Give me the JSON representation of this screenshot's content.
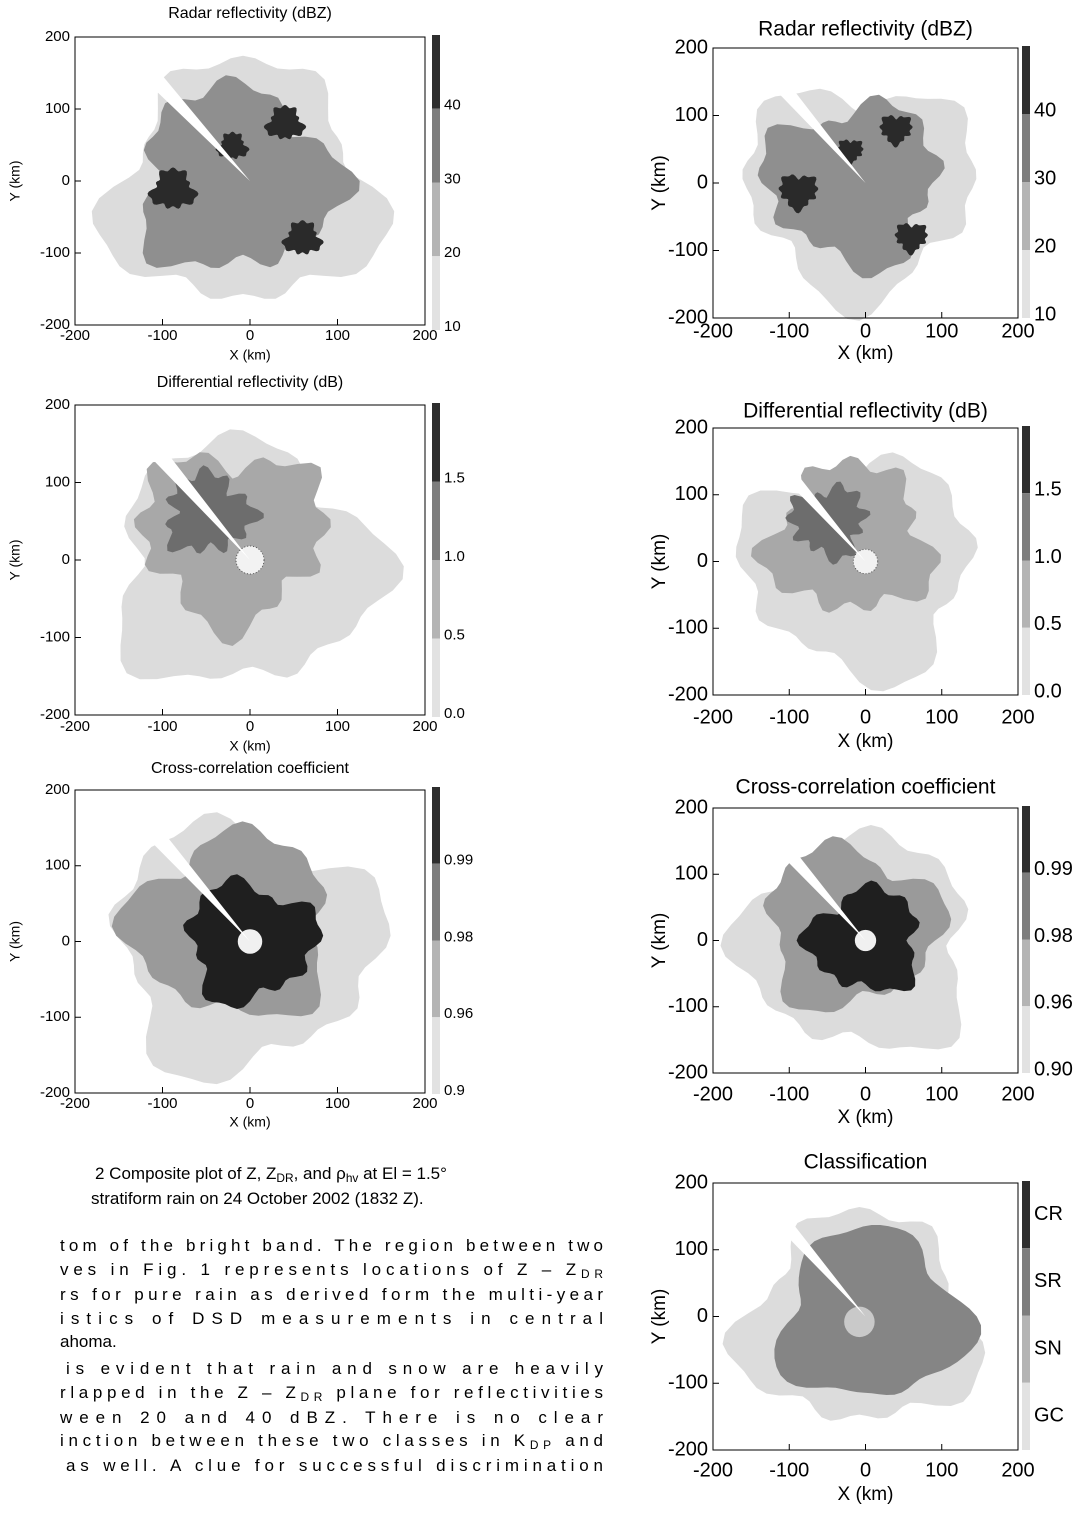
{
  "panels": [
    {
      "title": "Radar reflectivity (dBZ)",
      "x_label": "X (km)",
      "y_label": "Y (km)",
      "x_ticks": [
        "-200",
        "-100",
        "0",
        "100",
        "200"
      ],
      "y_ticks": [
        "200",
        "100",
        "0",
        "-100",
        "-200"
      ],
      "colorbar_labels": [
        "40",
        "30",
        "20",
        "10"
      ]
    },
    {
      "title": "Differential reflectivity (dB)",
      "x_label": "X (km)",
      "y_label": "Y (km)",
      "x_ticks": [
        "-200",
        "-100",
        "0",
        "100",
        "200"
      ],
      "y_ticks": [
        "200",
        "100",
        "0",
        "-100",
        "-200"
      ],
      "colorbar_labels": [
        "1.5",
        "1.0",
        "0.5",
        "0.0"
      ]
    },
    {
      "title": "Cross-correlation coefficient",
      "x_label": "X (km)",
      "y_label": "Y (km)",
      "x_ticks": [
        "-200",
        "-100",
        "0",
        "100",
        "200"
      ],
      "y_ticks": [
        "200",
        "100",
        "0",
        "-100",
        "-200"
      ],
      "colorbar_labels": [
        "0.99",
        "0.98",
        "0.96",
        "0.9"
      ]
    },
    {
      "title": "Radar reflectivity (dBZ)",
      "x_label": "X (km)",
      "y_label": "Y (km)",
      "x_ticks": [
        "-200",
        "-100",
        "0",
        "100",
        "200"
      ],
      "y_ticks": [
        "200",
        "100",
        "0",
        "-100",
        "-200"
      ],
      "colorbar_labels": [
        "40",
        "30",
        "20",
        "10"
      ]
    },
    {
      "title": "Differential reflectivity (dB)",
      "x_label": "X (km)",
      "y_label": "Y (km)",
      "x_ticks": [
        "-200",
        "-100",
        "0",
        "100",
        "200"
      ],
      "y_ticks": [
        "200",
        "100",
        "0",
        "-100",
        "-200"
      ],
      "colorbar_labels": [
        "1.5",
        "1.0",
        "0.5",
        "0.0"
      ]
    },
    {
      "title": "Cross-correlation coefficient",
      "x_label": "X (km)",
      "y_label": "Y (km)",
      "x_ticks": [
        "-200",
        "-100",
        "0",
        "100",
        "200"
      ],
      "y_ticks": [
        "200",
        "100",
        "0",
        "-100",
        "-200"
      ],
      "colorbar_labels": [
        "0.99",
        "0.98",
        "0.96",
        "0.90"
      ]
    },
    {
      "title": "Classification",
      "x_label": "X (km)",
      "y_label": "Y (km)",
      "x_ticks": [
        "-200",
        "-100",
        "0",
        "100",
        "200"
      ],
      "y_ticks": [
        "200",
        "100",
        "0",
        "-100",
        "-200"
      ],
      "colorbar_labels": [
        "CR",
        "SR",
        "SN",
        "GC"
      ]
    }
  ],
  "caption": [
    [
      "2 Composite plot of Z, Z",
      "DR",
      ", and ρ",
      "hv",
      " at El = 1.5°"
    ],
    [
      "stratiform rain on 24 October 2002 (1832 Z)."
    ]
  ],
  "body": [
    [
      "tom of the bright band. The region between two"
    ],
    [
      "ves in Fig. 1 represents locations of Z – Z",
      "DR"
    ],
    [
      "rs for pure rain as derived form the multi-year"
    ],
    [
      "istics of DSD measurements in central"
    ],
    [
      "ahoma."
    ],
    [
      "is evident that rain and snow are heavily"
    ],
    [
      "rlapped in the Z – Z",
      "DR",
      " plane for reflectivities"
    ],
    [
      "ween 20 and 40 dBZ. There is no clear"
    ],
    [
      "inction between these two classes in K",
      "DP",
      " and"
    ],
    [
      "as well. A clue for successful discrimination"
    ]
  ]
}
